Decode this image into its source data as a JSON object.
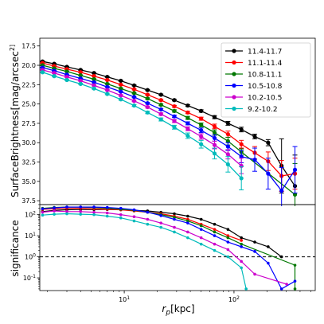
{
  "chart_data": [
    {
      "type": "line",
      "panel": "top",
      "ylabel": "SurfaceBrightness[mag/arcsec$^2$]",
      "ylim": [
        38.0,
        16.5
      ],
      "y_inverted": true,
      "yticks": [
        17.5,
        20.0,
        22.5,
        25.0,
        27.5,
        30.0,
        32.5,
        35.0,
        37.5
      ],
      "yticklabels": [
        "17.5",
        "20.0",
        "22.5",
        "25.0",
        "27.5",
        "30.0",
        "32.5",
        "35.0",
        "37.5"
      ],
      "xscale": "log",
      "xlim": [
        1.7,
        550
      ],
      "legend_position": "top-right",
      "grid": false,
      "series": [
        {
          "name": "11.4-11.7",
          "color": "#000000",
          "x": [
            1.8,
            2.3,
            3.0,
            4.0,
            5.3,
            7.0,
            9.3,
            12.3,
            16.3,
            21.6,
            28.6,
            37.9,
            50.2,
            66.5,
            88.1,
            116.7,
            154.6,
            204.8,
            271.3,
            359.4
          ],
          "y": [
            19.5,
            19.8,
            20.2,
            20.6,
            21.0,
            21.5,
            22.0,
            22.6,
            23.2,
            23.8,
            24.5,
            25.2,
            25.9,
            26.7,
            27.5,
            28.3,
            29.2,
            30.0,
            33.0,
            35.6
          ],
          "yerr": [
            0.05,
            0.05,
            0.05,
            0.05,
            0.05,
            0.05,
            0.06,
            0.06,
            0.07,
            0.08,
            0.1,
            0.12,
            0.15,
            0.2,
            0.25,
            0.3,
            0.3,
            0.4,
            3.5,
            4.0
          ]
        },
        {
          "name": "11.1-11.4",
          "color": "#ff0000",
          "x": [
            1.8,
            2.3,
            3.0,
            4.0,
            5.3,
            7.0,
            9.3,
            12.3,
            16.3,
            21.6,
            28.6,
            37.9,
            50.2,
            66.5,
            88.1,
            116.7,
            154.6,
            204.8,
            271.3,
            359.4
          ],
          "y": [
            19.7,
            20.1,
            20.5,
            20.9,
            21.4,
            21.9,
            22.5,
            23.1,
            23.8,
            24.5,
            25.3,
            26.1,
            26.9,
            27.9,
            28.9,
            30.2,
            31.3,
            32.4,
            34.3,
            34.0
          ],
          "yerr": [
            0.05,
            0.05,
            0.05,
            0.05,
            0.05,
            0.06,
            0.06,
            0.07,
            0.08,
            0.1,
            0.12,
            0.15,
            0.2,
            0.3,
            0.4,
            0.5,
            0.8,
            1.2,
            2.0,
            2.0
          ]
        },
        {
          "name": "10.8-11.1",
          "color": "#007700",
          "x": [
            1.8,
            2.3,
            3.0,
            4.0,
            5.3,
            7.0,
            9.3,
            12.3,
            16.3,
            21.6,
            28.6,
            37.9,
            50.2,
            66.5,
            88.1,
            116.7,
            359.4
          ],
          "y": [
            20.0,
            20.4,
            20.8,
            21.3,
            21.8,
            22.4,
            23.0,
            23.6,
            24.3,
            25.1,
            25.9,
            26.8,
            27.7,
            28.7,
            29.8,
            31.2,
            36.7
          ],
          "yerr": [
            0.05,
            0.05,
            0.05,
            0.05,
            0.06,
            0.06,
            0.07,
            0.08,
            0.1,
            0.12,
            0.15,
            0.2,
            0.25,
            0.35,
            0.5,
            0.4,
            4.0
          ]
        },
        {
          "name": "10.5-10.8",
          "color": "#0000ff",
          "x": [
            1.8,
            2.3,
            3.0,
            4.0,
            5.3,
            7.0,
            9.3,
            12.3,
            16.3,
            21.6,
            28.6,
            37.9,
            50.2,
            66.5,
            88.1,
            116.7,
            154.6,
            204.8,
            271.3,
            359.4
          ],
          "y": [
            20.3,
            20.7,
            21.2,
            21.7,
            22.2,
            22.8,
            23.4,
            24.1,
            24.9,
            25.7,
            26.6,
            27.5,
            28.4,
            29.4,
            30.5,
            31.8,
            32.2,
            34.0,
            36.2,
            33.5
          ],
          "yerr": [
            0.05,
            0.05,
            0.05,
            0.05,
            0.06,
            0.07,
            0.08,
            0.09,
            0.1,
            0.12,
            0.15,
            0.2,
            0.3,
            0.4,
            0.5,
            0.8,
            1.5,
            2.0,
            3.0,
            3.0
          ]
        },
        {
          "name": "10.2-10.5",
          "color": "#cc00cc",
          "x": [
            1.8,
            2.3,
            3.0,
            4.0,
            5.3,
            7.0,
            9.3,
            12.3,
            16.3,
            21.6,
            28.6,
            37.9,
            50.2,
            66.5,
            88.1,
            116.7
          ],
          "y": [
            20.6,
            21.0,
            21.5,
            22.0,
            22.6,
            23.2,
            23.9,
            24.6,
            25.4,
            26.3,
            27.2,
            28.2,
            29.2,
            30.3,
            31.5,
            33.0
          ],
          "yerr": [
            0.05,
            0.05,
            0.06,
            0.06,
            0.07,
            0.08,
            0.09,
            0.1,
            0.12,
            0.15,
            0.2,
            0.25,
            0.35,
            0.5,
            0.6,
            1.0
          ]
        },
        {
          "name": "9.2-10.2",
          "color": "#00bbbb",
          "x": [
            1.8,
            2.3,
            3.0,
            4.0,
            5.3,
            7.0,
            9.3,
            12.3,
            16.3,
            21.6,
            28.6,
            37.9,
            50.2,
            66.5,
            88.1,
            116.7
          ],
          "y": [
            20.9,
            21.4,
            21.9,
            22.4,
            23.0,
            23.7,
            24.4,
            25.2,
            26.1,
            27.0,
            28.0,
            29.1,
            30.2,
            31.4,
            32.8,
            34.6
          ],
          "yerr": [
            0.05,
            0.06,
            0.06,
            0.07,
            0.08,
            0.09,
            0.1,
            0.12,
            0.15,
            0.2,
            0.25,
            0.35,
            0.5,
            0.7,
            1.0,
            1.5
          ]
        }
      ]
    },
    {
      "type": "line",
      "panel": "bottom",
      "ylabel": "significance",
      "xlabel": "$r_p$[kpc]",
      "yscale": "log",
      "ylim": [
        0.025,
        300
      ],
      "yticks": [
        0.1,
        1,
        10,
        100
      ],
      "yticklabels": [
        "10$^{-1}$",
        "10$^{0}$",
        "10$^{1}$",
        "10$^{2}$"
      ],
      "xscale": "log",
      "xlim": [
        1.7,
        550
      ],
      "xticks": [
        10,
        100
      ],
      "xticklabels": [
        "10$^{1}$",
        "10$^{2}$"
      ],
      "reference_line": {
        "y": 1,
        "style": "dashed",
        "color": "#000000"
      },
      "grid": false,
      "series": [
        {
          "name": "11.4-11.7",
          "color": "#000000",
          "x": [
            1.8,
            2.3,
            3.0,
            4.0,
            5.3,
            7.0,
            9.3,
            12.3,
            16.3,
            21.6,
            28.6,
            37.9,
            50.2,
            66.5,
            88.1,
            116.7,
            154.6,
            204.8,
            271.3
          ],
          "y": [
            140,
            160,
            170,
            175,
            175,
            175,
            170,
            160,
            150,
            130,
            110,
            85,
            60,
            35,
            20,
            8,
            5,
            3,
            1
          ]
        },
        {
          "name": "11.1-11.4",
          "color": "#ff0000",
          "x": [
            1.8,
            2.3,
            3.0,
            4.0,
            5.3,
            7.0,
            9.3,
            12.3,
            16.3,
            21.6,
            28.6,
            37.9,
            50.2,
            66.5,
            88.1,
            116.7
          ],
          "y": [
            180,
            190,
            200,
            200,
            190,
            180,
            170,
            150,
            130,
            110,
            85,
            60,
            35,
            20,
            10,
            6
          ]
        },
        {
          "name": "10.8-11.1",
          "color": "#007700",
          "x": [
            1.8,
            2.3,
            3.0,
            4.0,
            5.3,
            7.0,
            9.3,
            12.3,
            16.3,
            21.6,
            28.6,
            37.9,
            50.2,
            66.5,
            88.1,
            116.7,
            359.4,
            359.4
          ],
          "y": [
            200,
            220,
            230,
            230,
            220,
            200,
            180,
            160,
            130,
            100,
            75,
            50,
            30,
            15,
            8,
            4,
            0.4,
            0.03
          ]
        },
        {
          "name": "10.5-10.8",
          "color": "#0000ff",
          "x": [
            1.8,
            2.3,
            3.0,
            4.0,
            5.3,
            7.0,
            9.3,
            12.3,
            16.3,
            21.6,
            28.6,
            37.9,
            50.2,
            66.5,
            88.1,
            116.7,
            154.6,
            204.8,
            271.3,
            359.4
          ],
          "y": [
            190,
            210,
            230,
            230,
            230,
            220,
            200,
            170,
            130,
            90,
            60,
            40,
            20,
            10,
            5,
            3,
            1.8,
            0.5,
            0.03,
            0.07
          ]
        },
        {
          "name": "10.2-10.5",
          "color": "#cc00cc",
          "x": [
            1.8,
            2.3,
            3.0,
            4.0,
            5.3,
            7.0,
            9.3,
            12.3,
            16.3,
            21.6,
            28.6,
            37.9,
            50.2,
            66.5,
            88.1,
            116.7,
            154.6,
            302
          ],
          "y": [
            130,
            150,
            140,
            140,
            130,
            120,
            100,
            80,
            60,
            40,
            25,
            15,
            8,
            4,
            2.2,
            0.6,
            0.15,
            0.05
          ]
        },
        {
          "name": "9.2-10.2",
          "color": "#00bbbb",
          "x": [
            1.8,
            2.3,
            3.0,
            4.0,
            5.3,
            7.0,
            9.3,
            12.3,
            16.3,
            21.6,
            28.6,
            37.9,
            50.2,
            66.5,
            88.1,
            116.7,
            129
          ],
          "y": [
            95,
            105,
            110,
            105,
            100,
            85,
            70,
            50,
            35,
            25,
            15,
            8,
            4,
            2,
            1,
            0.3,
            0.03
          ]
        }
      ]
    }
  ]
}
